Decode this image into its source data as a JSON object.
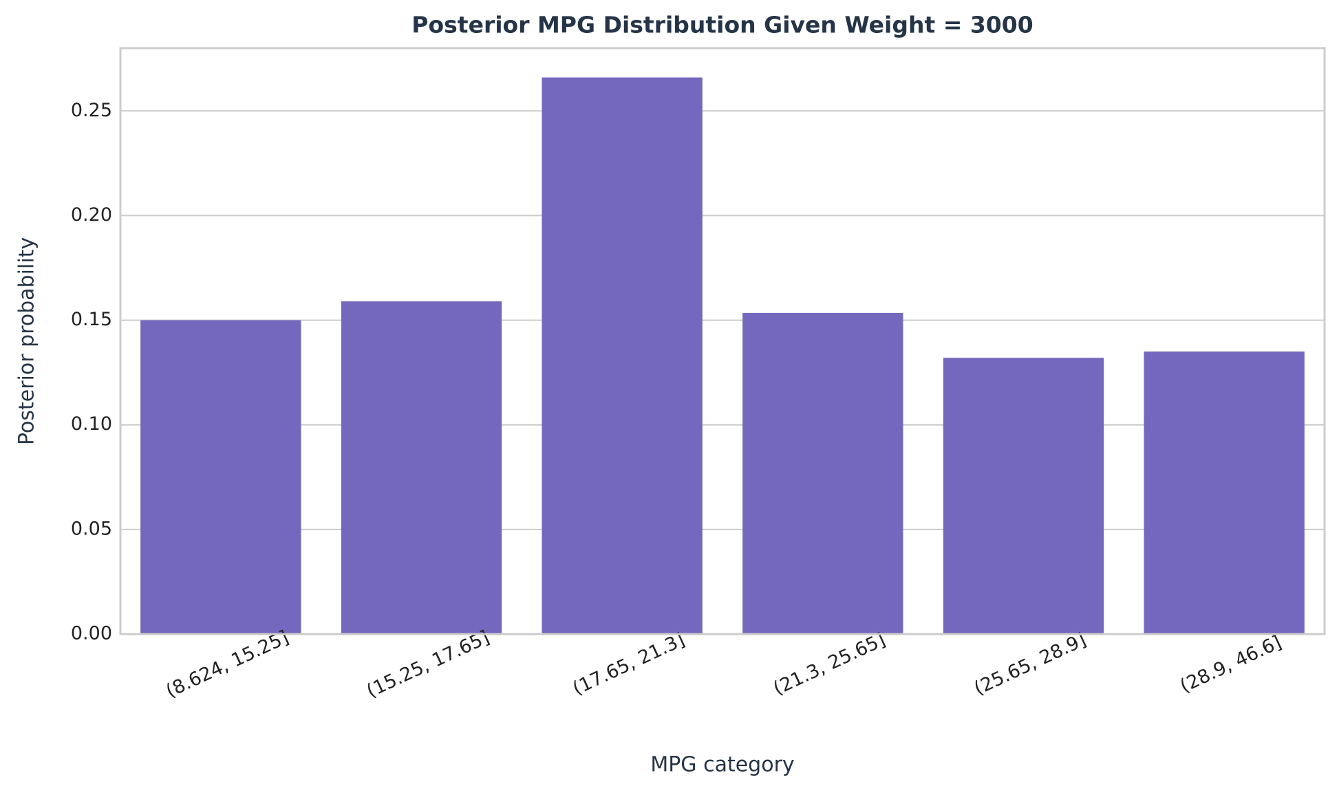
{
  "chart_data": {
    "type": "bar",
    "title": "Posterior MPG Distribution Given Weight = 3000",
    "x_label": "MPG category",
    "y_label": "Posterior probability",
    "categories": [
      "(8.624, 15.25]",
      "(15.25, 17.65]",
      "(17.65, 21.3]",
      "(21.3, 25.65]",
      "(25.65, 28.9]",
      "(28.9, 46.6]"
    ],
    "values": [
      0.15,
      0.159,
      0.266,
      0.1535,
      0.132,
      0.135
    ],
    "color": "#7468be",
    "ylim": [
      0,
      0.28
    ],
    "yticks": [
      {
        "value": 0,
        "label": "0.00"
      },
      0.05,
      {
        "value": 0.1,
        "label": "0.10"
      },
      0.15,
      {
        "value": 0.2,
        "label": "0.20"
      },
      0.25
    ],
    "grid": true
  }
}
